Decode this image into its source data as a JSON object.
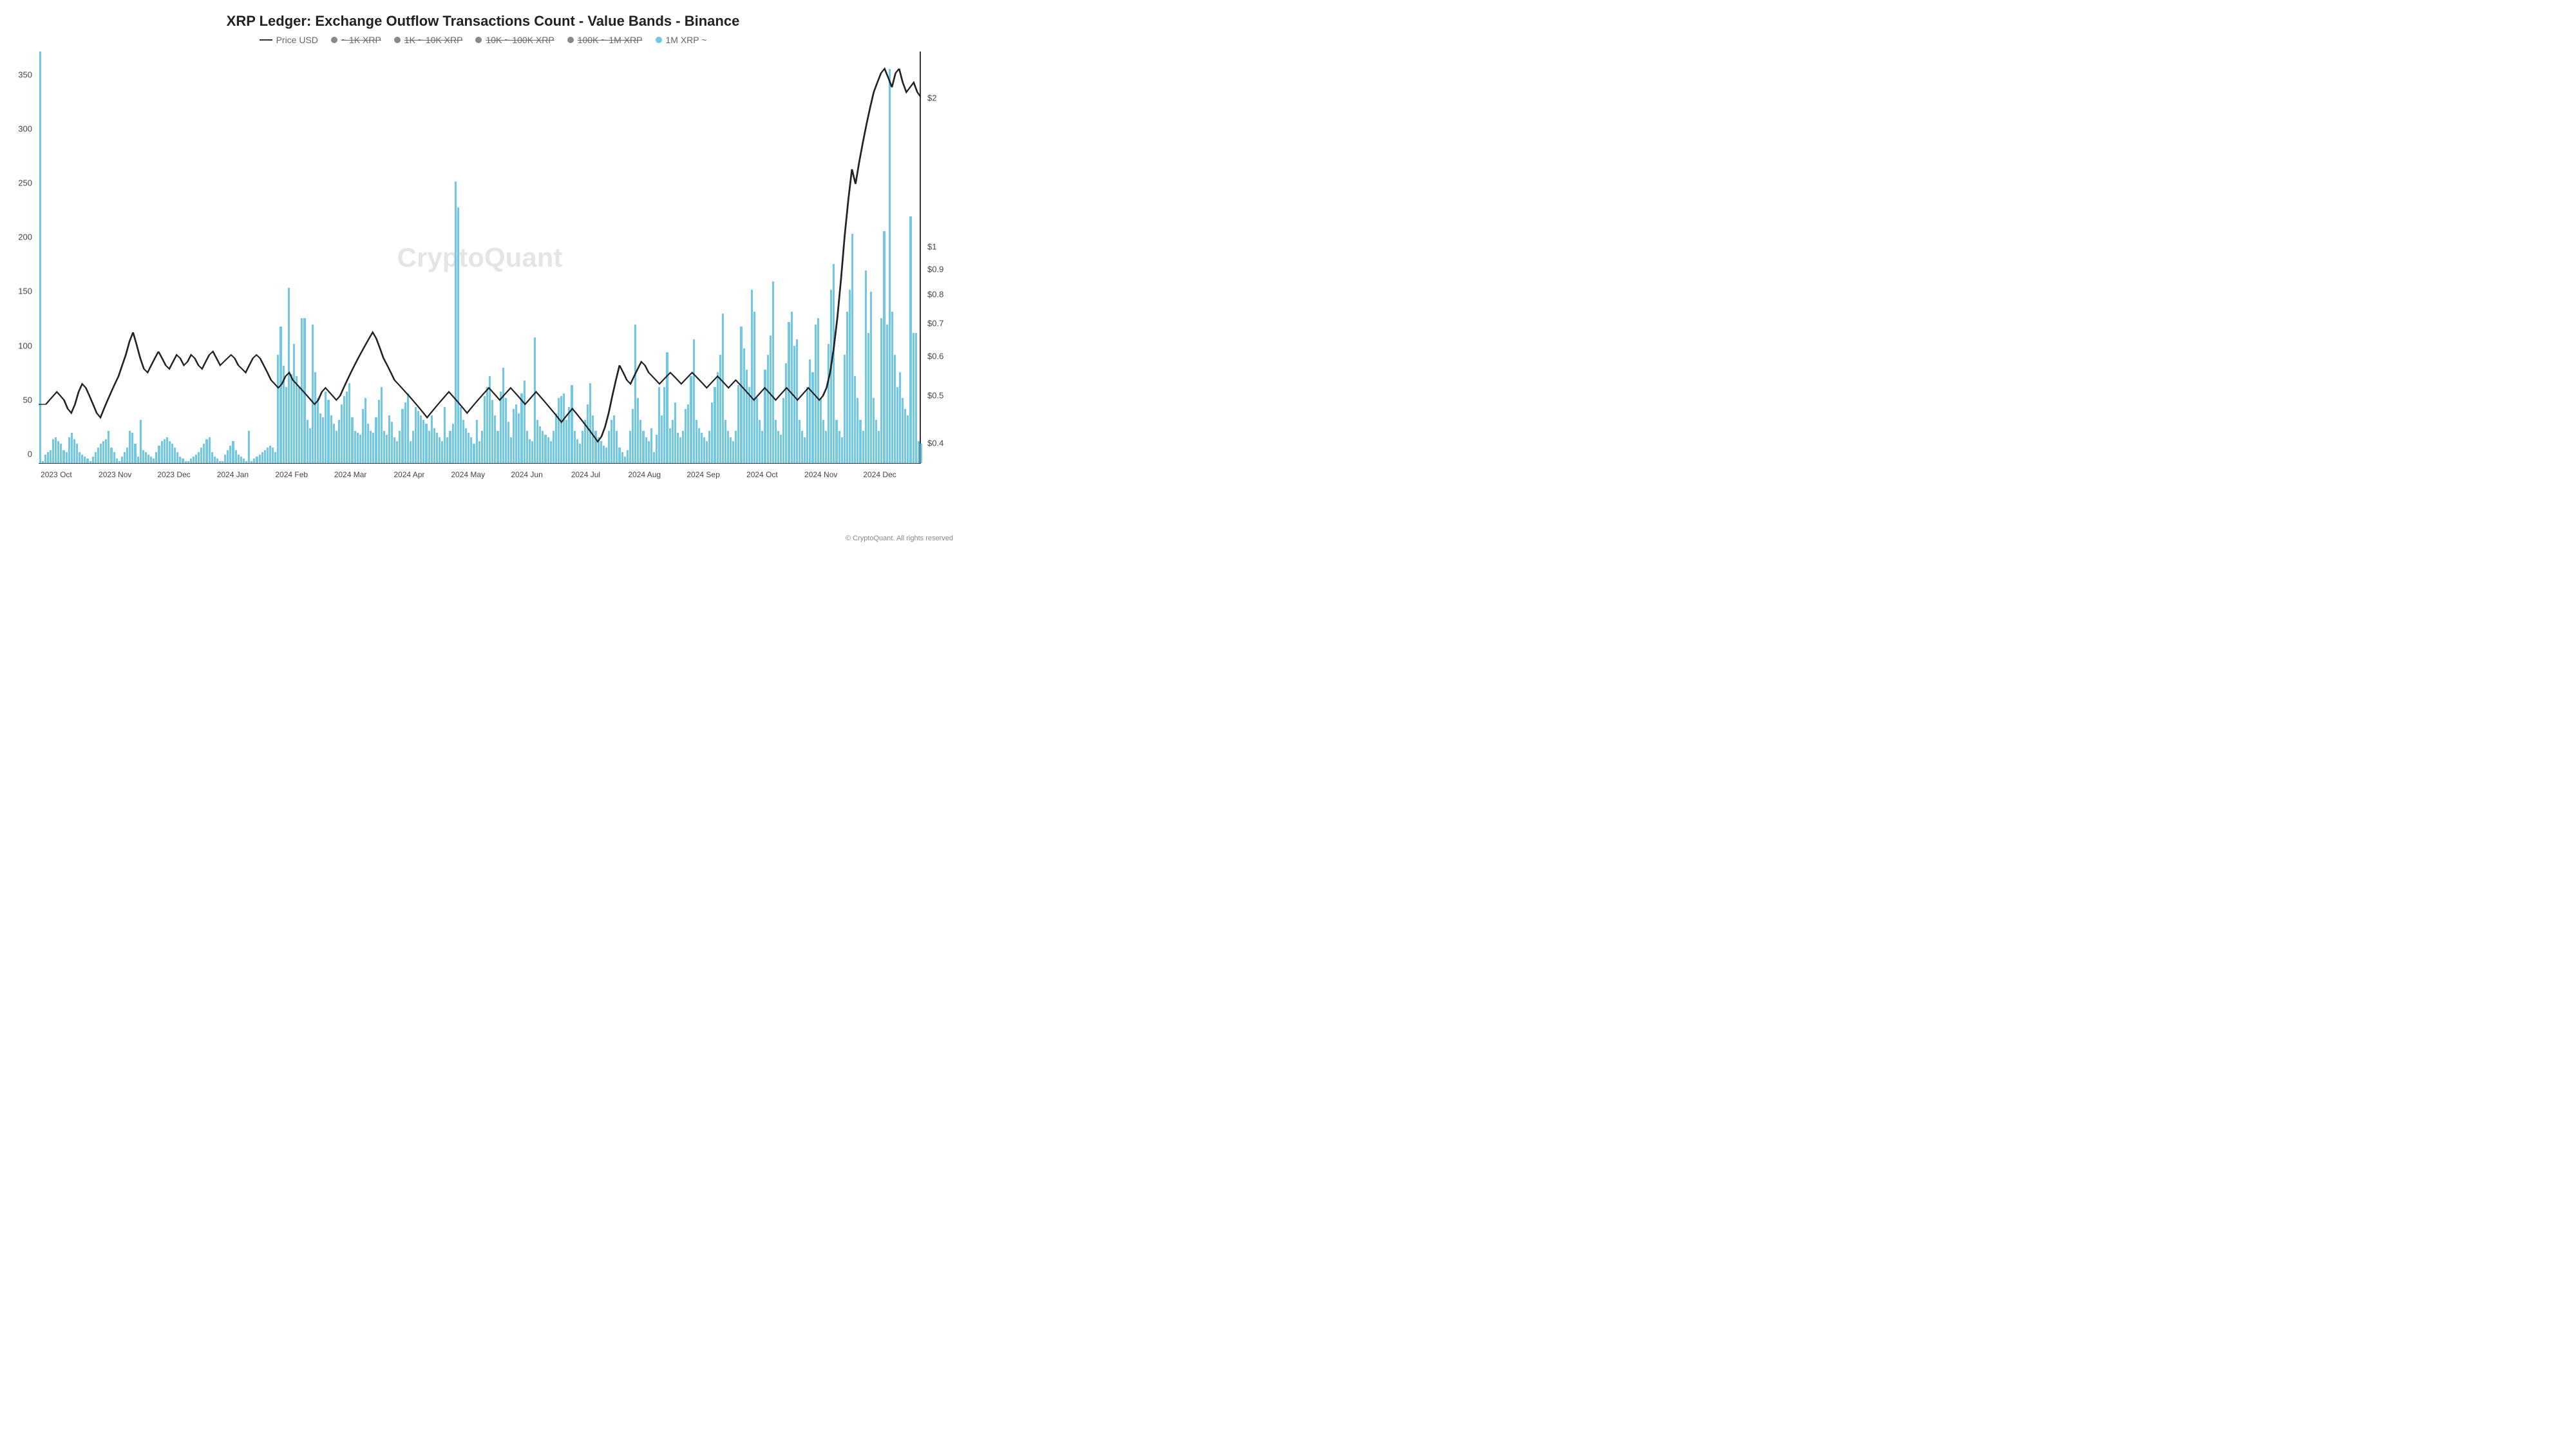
{
  "chart": {
    "type": "bar+line",
    "title": "XRP Ledger: Exchange Outflow Transactions Count - Value Bands - Binance",
    "title_fontsize": 22,
    "watermark": "CryptoQuant",
    "copyright": "© CryptoQuant. All rights reserved",
    "background_color": "#ffffff",
    "bar_color": "#6ec8e6",
    "line_color": "#222222",
    "axis_color": "#333333",
    "text_color": "#444444",
    "legend": [
      {
        "type": "line",
        "label": "Price USD",
        "color": "#333333",
        "disabled": false
      },
      {
        "type": "dot",
        "label": "~ 1K XRP",
        "color": "#888888",
        "disabled": true
      },
      {
        "type": "dot",
        "label": "1K ~ 10K XRP",
        "color": "#888888",
        "disabled": true
      },
      {
        "type": "dot",
        "label": "10K ~ 100K XRP",
        "color": "#888888",
        "disabled": true
      },
      {
        "type": "dot",
        "label": "100K ~ 1M XRP",
        "color": "#888888",
        "disabled": true
      },
      {
        "type": "dot",
        "label": "1M XRP ~",
        "color": "#6ec8e6",
        "disabled": false
      }
    ],
    "y_left": {
      "min": 0,
      "max": 380,
      "ticks": [
        0,
        50,
        100,
        150,
        200,
        250,
        300,
        350
      ]
    },
    "y_right": {
      "type": "log",
      "ticks": [
        {
          "v": 0.4,
          "label": "$0.4"
        },
        {
          "v": 0.5,
          "label": "$0.5"
        },
        {
          "v": 0.6,
          "label": "$0.6"
        },
        {
          "v": 0.7,
          "label": "$0.7"
        },
        {
          "v": 0.8,
          "label": "$0.8"
        },
        {
          "v": 0.9,
          "label": "$0.9"
        },
        {
          "v": 1.0,
          "label": "$1"
        },
        {
          "v": 2.0,
          "label": "$2"
        }
      ],
      "min": 0.38,
      "max": 2.6
    },
    "x_labels": [
      "2023 Oct",
      "2023 Nov",
      "2023 Dec",
      "2024 Jan",
      "2024 Feb",
      "2024 Mar",
      "2024 Apr",
      "2024 May",
      "2024 Jun",
      "2024 Jul",
      "2024 Aug",
      "2024 Sep",
      "2024 Oct",
      "2024 Nov",
      "2024 Dec"
    ],
    "bars": [
      380,
      2,
      8,
      10,
      12,
      22,
      24,
      20,
      18,
      12,
      10,
      24,
      28,
      22,
      18,
      10,
      8,
      6,
      4,
      2,
      6,
      10,
      14,
      18,
      20,
      22,
      30,
      14,
      10,
      4,
      2,
      6,
      10,
      14,
      30,
      28,
      18,
      6,
      40,
      12,
      10,
      8,
      6,
      4,
      10,
      16,
      20,
      22,
      24,
      20,
      18,
      14,
      10,
      6,
      4,
      2,
      2,
      4,
      6,
      8,
      10,
      14,
      18,
      22,
      24,
      10,
      6,
      4,
      2,
      2,
      8,
      12,
      16,
      20,
      12,
      8,
      6,
      4,
      2,
      30,
      2,
      4,
      6,
      8,
      10,
      12,
      14,
      16,
      14,
      10,
      100,
      126,
      90,
      70,
      162,
      82,
      110,
      80,
      70,
      134,
      134,
      40,
      32,
      128,
      84,
      60,
      46,
      42,
      66,
      58,
      44,
      36,
      30,
      40,
      54,
      62,
      66,
      74,
      42,
      30,
      28,
      26,
      50,
      60,
      36,
      30,
      28,
      42,
      58,
      70,
      30,
      26,
      44,
      38,
      24,
      20,
      30,
      50,
      56,
      64,
      20,
      30,
      52,
      48,
      44,
      40,
      36,
      30,
      44,
      32,
      28,
      24,
      20,
      52,
      24,
      30,
      36,
      260,
      236,
      52,
      40,
      32,
      28,
      24,
      18,
      40,
      20,
      30,
      62,
      70,
      80,
      58,
      44,
      30,
      66,
      88,
      60,
      38,
      24,
      50,
      54,
      46,
      64,
      76,
      30,
      22,
      20,
      116,
      40,
      34,
      30,
      26,
      24,
      20,
      30,
      46,
      60,
      62,
      64,
      40,
      52,
      72,
      30,
      22,
      18,
      30,
      40,
      54,
      74,
      44,
      30,
      24,
      20,
      16,
      14,
      30,
      40,
      44,
      30,
      14,
      10,
      6,
      12,
      30,
      50,
      128,
      60,
      40,
      30,
      24,
      20,
      32,
      10,
      26,
      70,
      44,
      70,
      102,
      32,
      40,
      56,
      28,
      24,
      30,
      50,
      54,
      80,
      114,
      40,
      32,
      28,
      24,
      20,
      30,
      56,
      70,
      84,
      100,
      138,
      40,
      30,
      24,
      20,
      30,
      72,
      126,
      106,
      86,
      70,
      160,
      140,
      60,
      40,
      30,
      86,
      100,
      118,
      168,
      40,
      30,
      26,
      60,
      92,
      130,
      140,
      108,
      114,
      40,
      30,
      24,
      70,
      96,
      84,
      128,
      134,
      60,
      40,
      30,
      110,
      160,
      184,
      40,
      30,
      24,
      100,
      140,
      160,
      212,
      80,
      60,
      40,
      30,
      178,
      120,
      158,
      60,
      40,
      30,
      134,
      214,
      128,
      364,
      140,
      100,
      70,
      84,
      60,
      50,
      44,
      228,
      120,
      120,
      20,
      18
    ],
    "price": [
      0.5,
      0.5,
      0.5,
      0.51,
      0.52,
      0.53,
      0.52,
      0.51,
      0.49,
      0.48,
      0.5,
      0.53,
      0.55,
      0.54,
      0.52,
      0.5,
      0.48,
      0.47,
      0.49,
      0.51,
      0.53,
      0.55,
      0.57,
      0.6,
      0.63,
      0.67,
      0.7,
      0.66,
      0.62,
      0.59,
      0.58,
      0.6,
      0.62,
      0.64,
      0.62,
      0.6,
      0.59,
      0.61,
      0.63,
      0.62,
      0.6,
      0.61,
      0.63,
      0.62,
      0.6,
      0.59,
      0.61,
      0.63,
      0.64,
      0.62,
      0.6,
      0.61,
      0.62,
      0.63,
      0.62,
      0.6,
      0.59,
      0.58,
      0.6,
      0.62,
      0.63,
      0.62,
      0.6,
      0.58,
      0.56,
      0.55,
      0.54,
      0.55,
      0.57,
      0.58,
      0.56,
      0.55,
      0.54,
      0.53,
      0.52,
      0.51,
      0.5,
      0.51,
      0.53,
      0.54,
      0.53,
      0.52,
      0.51,
      0.52,
      0.54,
      0.56,
      0.58,
      0.6,
      0.62,
      0.64,
      0.66,
      0.68,
      0.7,
      0.68,
      0.65,
      0.62,
      0.6,
      0.58,
      0.56,
      0.55,
      0.54,
      0.53,
      0.52,
      0.51,
      0.5,
      0.49,
      0.48,
      0.47,
      0.48,
      0.49,
      0.5,
      0.51,
      0.52,
      0.53,
      0.52,
      0.51,
      0.5,
      0.49,
      0.48,
      0.49,
      0.5,
      0.51,
      0.52,
      0.53,
      0.54,
      0.53,
      0.52,
      0.51,
      0.52,
      0.53,
      0.54,
      0.53,
      0.52,
      0.51,
      0.5,
      0.51,
      0.52,
      0.53,
      0.52,
      0.51,
      0.5,
      0.49,
      0.48,
      0.47,
      0.46,
      0.47,
      0.48,
      0.49,
      0.48,
      0.47,
      0.46,
      0.45,
      0.44,
      0.43,
      0.42,
      0.43,
      0.45,
      0.48,
      0.52,
      0.56,
      0.6,
      0.58,
      0.56,
      0.55,
      0.57,
      0.59,
      0.61,
      0.6,
      0.58,
      0.57,
      0.56,
      0.55,
      0.56,
      0.57,
      0.58,
      0.57,
      0.56,
      0.55,
      0.56,
      0.57,
      0.58,
      0.57,
      0.56,
      0.55,
      0.54,
      0.55,
      0.56,
      0.57,
      0.56,
      0.55,
      0.54,
      0.55,
      0.56,
      0.55,
      0.54,
      0.53,
      0.52,
      0.51,
      0.52,
      0.53,
      0.54,
      0.53,
      0.52,
      0.51,
      0.52,
      0.53,
      0.54,
      0.53,
      0.52,
      0.51,
      0.52,
      0.53,
      0.54,
      0.53,
      0.52,
      0.51,
      0.52,
      0.54,
      0.58,
      0.65,
      0.75,
      0.9,
      1.1,
      1.3,
      1.5,
      1.4,
      1.55,
      1.7,
      1.85,
      2.0,
      2.15,
      2.25,
      2.35,
      2.4,
      2.3,
      2.2,
      2.35,
      2.4,
      2.25,
      2.15,
      2.2,
      2.25,
      2.15,
      2.1
    ]
  }
}
